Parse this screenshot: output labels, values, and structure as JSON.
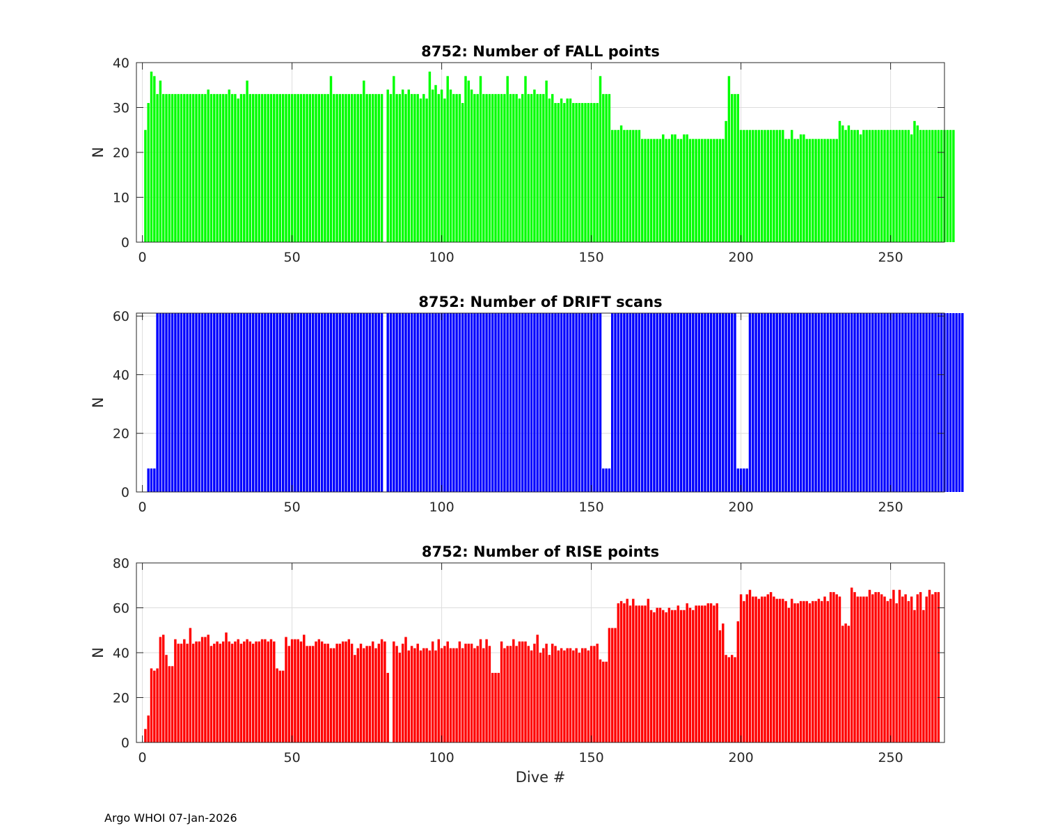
{
  "footer": "Argo WHOI 07-Jan-2026",
  "chart_data": [
    {
      "type": "bar",
      "title": "8752: Number of FALL points",
      "xlabel": "",
      "ylabel": "N",
      "xlim": [
        -2,
        268
      ],
      "ylim": [
        0,
        40
      ],
      "xticks": [
        0,
        50,
        100,
        150,
        200,
        250
      ],
      "yticks": [
        0,
        10,
        20,
        30,
        40
      ],
      "grid": true,
      "color": "#00ff00",
      "x_start": 1,
      "values": [
        25,
        31,
        38,
        37,
        33,
        36,
        33,
        33,
        33,
        33,
        33,
        33,
        33,
        33,
        33,
        33,
        33,
        33,
        33,
        33,
        33,
        34,
        33,
        33,
        33,
        33,
        33,
        33,
        34,
        33,
        33,
        32,
        33,
        33,
        36,
        33,
        33,
        33,
        33,
        33,
        33,
        33,
        33,
        33,
        33,
        33,
        33,
        33,
        33,
        33,
        33,
        33,
        33,
        33,
        33,
        33,
        33,
        33,
        33,
        33,
        33,
        33,
        37,
        33,
        33,
        33,
        33,
        33,
        33,
        33,
        33,
        33,
        33,
        36,
        33,
        33,
        33,
        33,
        33,
        33,
        0,
        34,
        33,
        37,
        33,
        33,
        34,
        33,
        34,
        33,
        33,
        33,
        32,
        33,
        32,
        38,
        34,
        35,
        33,
        34,
        32,
        37,
        34,
        33,
        33,
        33,
        31,
        37,
        36,
        34,
        33,
        33,
        37,
        33,
        33,
        33,
        33,
        33,
        33,
        33,
        33,
        37,
        33,
        33,
        33,
        32,
        33,
        37,
        33,
        33,
        34,
        33,
        33,
        33,
        36,
        32,
        33,
        31,
        31,
        32,
        31,
        32,
        32,
        31,
        31,
        31,
        31,
        31,
        31,
        31,
        31,
        31,
        37,
        33,
        33,
        33,
        25,
        25,
        25,
        26,
        25,
        25,
        25,
        25,
        25,
        25,
        23,
        23,
        23,
        23,
        23,
        23,
        23,
        24,
        23,
        23,
        24,
        24,
        23,
        23,
        24,
        24,
        23,
        23,
        23,
        23,
        23,
        23,
        23,
        23,
        23,
        23,
        23,
        23,
        27,
        37,
        33,
        33,
        33,
        25,
        25,
        25,
        25,
        25,
        25,
        25,
        25,
        25,
        25,
        25,
        25,
        25,
        25,
        25,
        23,
        23,
        25,
        23,
        23,
        24,
        24,
        23,
        23,
        23,
        23,
        23,
        23,
        23,
        23,
        23,
        23,
        23,
        27,
        26,
        25,
        26,
        25,
        25,
        25,
        24,
        25,
        25,
        25,
        25,
        25,
        25,
        25,
        25,
        25,
        25,
        25,
        25,
        25,
        25,
        25,
        25,
        24,
        27,
        26,
        25,
        25,
        25,
        25,
        25,
        25,
        25,
        25,
        25,
        25,
        25,
        25
      ]
    },
    {
      "type": "bar",
      "title": "8752: Number of DRIFT scans",
      "xlabel": "",
      "ylabel": "N",
      "xlim": [
        -2,
        268
      ],
      "ylim": [
        0,
        61
      ],
      "xticks": [
        0,
        50,
        100,
        150,
        200,
        250
      ],
      "yticks": [
        0,
        20,
        40,
        60
      ],
      "grid": true,
      "color": "#0000ff",
      "x_start": 1,
      "values": [
        0,
        8,
        8,
        8,
        61,
        61,
        61,
        61,
        61,
        61,
        61,
        61,
        61,
        61,
        61,
        61,
        61,
        61,
        61,
        61,
        61,
        61,
        61,
        61,
        61,
        61,
        61,
        61,
        61,
        61,
        61,
        61,
        61,
        61,
        61,
        61,
        61,
        61,
        61,
        61,
        61,
        61,
        61,
        61,
        61,
        61,
        61,
        61,
        61,
        61,
        61,
        61,
        61,
        61,
        61,
        61,
        61,
        61,
        61,
        61,
        61,
        61,
        61,
        61,
        61,
        61,
        61,
        61,
        61,
        61,
        61,
        61,
        61,
        61,
        61,
        61,
        61,
        61,
        61,
        61,
        0,
        61,
        61,
        61,
        61,
        61,
        61,
        61,
        61,
        61,
        61,
        61,
        61,
        61,
        61,
        61,
        61,
        61,
        61,
        61,
        61,
        61,
        61,
        61,
        61,
        61,
        61,
        61,
        61,
        61,
        61,
        61,
        61,
        61,
        61,
        61,
        61,
        61,
        61,
        61,
        61,
        61,
        61,
        61,
        61,
        61,
        61,
        61,
        61,
        61,
        61,
        61,
        61,
        61,
        61,
        61,
        61,
        61,
        61,
        61,
        61,
        61,
        61,
        61,
        61,
        61,
        61,
        61,
        61,
        61,
        61,
        61,
        61,
        8,
        8,
        8,
        61,
        61,
        61,
        61,
        61,
        61,
        61,
        61,
        61,
        61,
        61,
        61,
        61,
        61,
        61,
        61,
        61,
        61,
        61,
        61,
        61,
        61,
        61,
        61,
        61,
        61,
        61,
        61,
        61,
        61,
        61,
        61,
        61,
        61,
        61,
        61,
        61,
        61,
        61,
        61,
        61,
        61,
        8,
        8,
        8,
        8,
        61,
        61,
        61,
        61,
        61,
        61,
        61,
        61,
        61,
        61,
        61,
        61,
        61,
        61,
        61,
        61,
        61,
        61,
        61,
        61,
        61,
        61,
        61,
        61,
        61,
        61,
        61,
        61,
        61,
        61,
        61,
        61,
        61,
        61,
        61,
        61,
        61,
        61,
        61,
        61,
        61,
        61,
        61,
        61,
        61,
        61,
        61,
        61,
        61,
        61,
        61,
        61,
        61,
        61,
        61,
        61,
        61,
        61,
        61,
        61,
        61,
        61,
        61,
        61,
        61,
        61,
        61,
        61,
        61,
        61,
        61,
        61
      ]
    },
    {
      "type": "bar",
      "title": "8752: Number of RISE points",
      "xlabel": "Dive #",
      "ylabel": "N",
      "xlim": [
        -2,
        268
      ],
      "ylim": [
        0,
        80
      ],
      "xticks": [
        0,
        50,
        100,
        150,
        200,
        250
      ],
      "yticks": [
        0,
        20,
        40,
        60,
        80
      ],
      "grid": true,
      "color": "#ff0000",
      "x_start": 1,
      "values": [
        6,
        12,
        33,
        32,
        33,
        47,
        48,
        39,
        34,
        34,
        46,
        44,
        44,
        46,
        44,
        51,
        44,
        45,
        45,
        47,
        47,
        48,
        43,
        44,
        45,
        44,
        45,
        49,
        45,
        44,
        45,
        46,
        44,
        45,
        46,
        45,
        44,
        45,
        45,
        46,
        46,
        45,
        46,
        45,
        33,
        32,
        32,
        47,
        43,
        46,
        46,
        46,
        45,
        48,
        43,
        43,
        43,
        45,
        46,
        45,
        44,
        44,
        42,
        42,
        44,
        44,
        45,
        45,
        46,
        44,
        39,
        42,
        44,
        42,
        43,
        43,
        45,
        42,
        44,
        46,
        45,
        31,
        0,
        45,
        43,
        40,
        44,
        47,
        41,
        43,
        42,
        44,
        41,
        42,
        42,
        41,
        45,
        41,
        46,
        42,
        43,
        45,
        42,
        42,
        42,
        45,
        42,
        44,
        44,
        44,
        42,
        43,
        46,
        42,
        46,
        43,
        31,
        31,
        31,
        45,
        42,
        43,
        43,
        46,
        43,
        45,
        45,
        45,
        43,
        41,
        44,
        48,
        40,
        42,
        44,
        39,
        44,
        43,
        41,
        42,
        41,
        42,
        42,
        41,
        42,
        40,
        42,
        42,
        41,
        43,
        43,
        44,
        37,
        36,
        36,
        51,
        51,
        51,
        62,
        63,
        62,
        64,
        61,
        64,
        61,
        61,
        61,
        61,
        64,
        59,
        58,
        60,
        60,
        59,
        58,
        60,
        59,
        59,
        61,
        59,
        59,
        62,
        60,
        59,
        61,
        61,
        61,
        61,
        62,
        62,
        61,
        62,
        50,
        53,
        39,
        38,
        39,
        38,
        54,
        66,
        63,
        66,
        68,
        65,
        65,
        64,
        65,
        65,
        66,
        67,
        65,
        64,
        64,
        64,
        63,
        60,
        64,
        62,
        62,
        63,
        63,
        63,
        62,
        63,
        63,
        64,
        63,
        65,
        63,
        67,
        67,
        66,
        65,
        52,
        53,
        52,
        69,
        67,
        65,
        65,
        65,
        65,
        68,
        66,
        67,
        67,
        66,
        65,
        63,
        64,
        68,
        62,
        68,
        65,
        66,
        63,
        65,
        59,
        66,
        67,
        59,
        65,
        68,
        66,
        67,
        67
      ]
    }
  ]
}
